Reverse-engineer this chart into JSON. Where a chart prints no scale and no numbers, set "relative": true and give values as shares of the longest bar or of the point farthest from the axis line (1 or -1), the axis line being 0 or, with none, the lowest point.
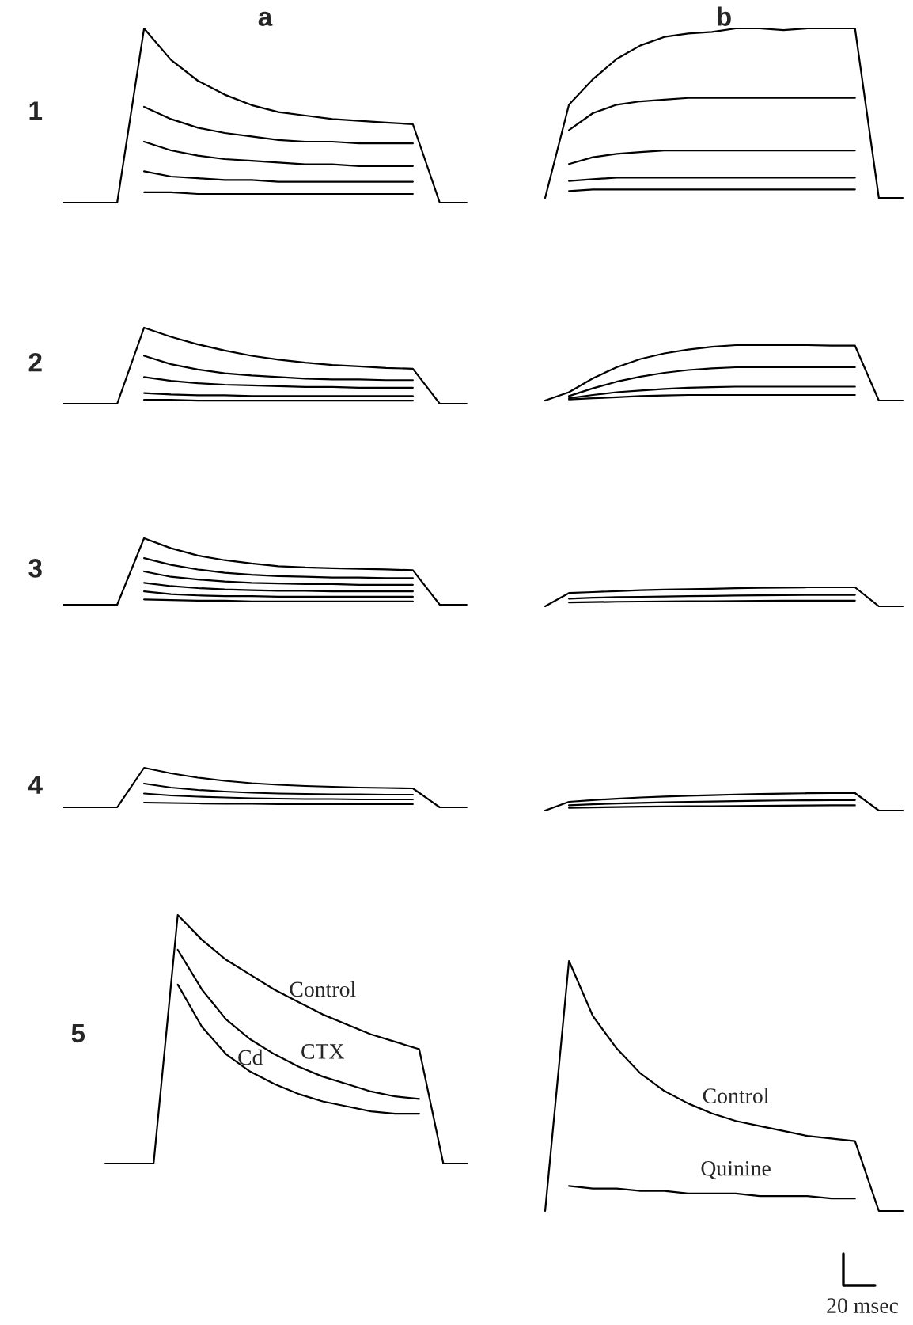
{
  "chart_data": [
    {
      "type": "line",
      "title": "a",
      "ylabel": "1",
      "relative": true,
      "categories": [
        null,
        null,
        null,
        null,
        null,
        null,
        null,
        null,
        null,
        null,
        null,
        null,
        null,
        null,
        null,
        null
      ],
      "series": [
        {
          "color": "#000000",
          "values": [
            0,
            0,
            0,
            1,
            0.82,
            0.7,
            0.62,
            0.56,
            0.52,
            0.5,
            0.48,
            0.47,
            0.46,
            0.45,
            0,
            0
          ]
        },
        {
          "color": "#000000",
          "values": [
            null,
            null,
            null,
            0.55,
            0.48,
            0.43,
            0.4,
            0.38,
            0.36,
            0.35,
            0.35,
            0.34,
            0.34,
            0.34,
            null,
            null
          ]
        },
        {
          "color": "#000000",
          "values": [
            null,
            null,
            null,
            0.35,
            0.3,
            0.27,
            0.25,
            0.24,
            0.23,
            0.22,
            0.22,
            0.21,
            0.21,
            0.21,
            null,
            null
          ]
        },
        {
          "color": "#000000",
          "values": [
            null,
            null,
            null,
            0.18,
            0.15,
            0.14,
            0.13,
            0.13,
            0.12,
            0.12,
            0.12,
            0.12,
            0.12,
            0.12,
            null,
            null
          ]
        },
        {
          "color": "#000000",
          "values": [
            null,
            null,
            null,
            0.06,
            0.06,
            0.05,
            0.05,
            0.05,
            0.05,
            0.05,
            0.05,
            0.05,
            0.05,
            0.05,
            null,
            null
          ]
        }
      ]
    },
    {
      "type": "line",
      "title": "b",
      "relative": true,
      "categories": [
        null,
        null,
        null,
        null,
        null,
        null,
        null,
        null,
        null,
        null,
        null,
        null,
        null,
        null,
        null,
        null
      ],
      "series": [
        {
          "color": "#000000",
          "values": [
            0,
            0.55,
            0.7,
            0.82,
            0.9,
            0.95,
            0.97,
            0.98,
            1,
            1,
            0.99,
            1,
            1,
            1,
            0,
            0
          ]
        },
        {
          "color": "#000000",
          "values": [
            null,
            0.4,
            0.5,
            0.55,
            0.57,
            0.58,
            0.59,
            0.59,
            0.59,
            0.59,
            0.59,
            0.59,
            0.59,
            0.59,
            null,
            null
          ]
        },
        {
          "color": "#000000",
          "values": [
            null,
            0.2,
            0.24,
            0.26,
            0.27,
            0.28,
            0.28,
            0.28,
            0.28,
            0.28,
            0.28,
            0.28,
            0.28,
            0.28,
            null,
            null
          ]
        },
        {
          "color": "#000000",
          "values": [
            null,
            0.1,
            0.11,
            0.12,
            0.12,
            0.12,
            0.12,
            0.12,
            0.12,
            0.12,
            0.12,
            0.12,
            0.12,
            0.12,
            null,
            null
          ]
        },
        {
          "color": "#000000",
          "values": [
            null,
            0.04,
            0.05,
            0.05,
            0.05,
            0.05,
            0.05,
            0.05,
            0.05,
            0.05,
            0.05,
            0.05,
            0.05,
            0.05,
            null,
            null
          ]
        }
      ]
    },
    {
      "type": "line",
      "ylabel": "2",
      "relative": true,
      "categories": [
        null,
        null,
        null,
        null,
        null,
        null,
        null,
        null,
        null,
        null,
        null,
        null,
        null,
        null,
        null,
        null
      ],
      "series": [
        {
          "color": "#000000",
          "values": [
            0,
            0,
            0,
            1,
            0.88,
            0.78,
            0.7,
            0.63,
            0.58,
            0.54,
            0.51,
            0.49,
            0.47,
            0.46,
            0,
            0
          ]
        },
        {
          "color": "#000000",
          "values": [
            null,
            null,
            null,
            0.63,
            0.52,
            0.45,
            0.4,
            0.37,
            0.35,
            0.33,
            0.32,
            0.32,
            0.31,
            0.31,
            null,
            null
          ]
        },
        {
          "color": "#000000",
          "values": [
            null,
            null,
            null,
            0.35,
            0.3,
            0.27,
            0.25,
            0.24,
            0.23,
            0.22,
            0.22,
            0.21,
            0.21,
            0.21,
            null,
            null
          ]
        },
        {
          "color": "#000000",
          "values": [
            null,
            null,
            null,
            0.14,
            0.12,
            0.11,
            0.11,
            0.1,
            0.1,
            0.1,
            0.1,
            0.1,
            0.1,
            0.1,
            null,
            null
          ]
        },
        {
          "color": "#000000",
          "values": [
            null,
            null,
            null,
            0.05,
            0.05,
            0.04,
            0.04,
            0.04,
            0.04,
            0.04,
            0.04,
            0.04,
            0.04,
            0.04,
            null,
            null
          ]
        }
      ]
    },
    {
      "type": "line",
      "relative": true,
      "categories": [
        null,
        null,
        null,
        null,
        null,
        null,
        null,
        null,
        null,
        null,
        null,
        null,
        null,
        null,
        null,
        null
      ],
      "series": [
        {
          "color": "#000000",
          "values": [
            0,
            0.15,
            0.4,
            0.6,
            0.75,
            0.85,
            0.92,
            0.97,
            1,
            1,
            1,
            1,
            0.99,
            0.99,
            0,
            0
          ]
        },
        {
          "color": "#000000",
          "values": [
            null,
            0.08,
            0.22,
            0.34,
            0.43,
            0.5,
            0.55,
            0.58,
            0.6,
            0.6,
            0.6,
            0.6,
            0.6,
            0.6,
            null,
            null
          ]
        },
        {
          "color": "#000000",
          "values": [
            null,
            0.04,
            0.1,
            0.15,
            0.18,
            0.21,
            0.23,
            0.24,
            0.25,
            0.25,
            0.25,
            0.25,
            0.25,
            0.25,
            null,
            null
          ]
        },
        {
          "color": "#000000",
          "values": [
            null,
            0.02,
            0.04,
            0.06,
            0.08,
            0.09,
            0.1,
            0.1,
            0.1,
            0.1,
            0.1,
            0.1,
            0.1,
            0.1,
            null,
            null
          ]
        }
      ]
    },
    {
      "type": "line",
      "ylabel": "3",
      "relative": true,
      "categories": [
        null,
        null,
        null,
        null,
        null,
        null,
        null,
        null,
        null,
        null,
        null,
        null,
        null,
        null,
        null,
        null
      ],
      "series": [
        {
          "color": "#000000",
          "values": [
            0,
            0,
            0,
            1,
            0.85,
            0.74,
            0.67,
            0.62,
            0.58,
            0.56,
            0.55,
            0.54,
            0.53,
            0.52,
            0,
            0
          ]
        },
        {
          "color": "#000000",
          "values": [
            null,
            null,
            null,
            0.7,
            0.6,
            0.53,
            0.48,
            0.45,
            0.43,
            0.42,
            0.41,
            0.41,
            0.4,
            0.4,
            null,
            null
          ]
        },
        {
          "color": "#000000",
          "values": [
            null,
            null,
            null,
            0.5,
            0.42,
            0.38,
            0.35,
            0.33,
            0.32,
            0.31,
            0.31,
            0.3,
            0.3,
            0.3,
            null,
            null
          ]
        },
        {
          "color": "#000000",
          "values": [
            null,
            null,
            null,
            0.33,
            0.28,
            0.25,
            0.23,
            0.22,
            0.21,
            0.21,
            0.2,
            0.2,
            0.2,
            0.2,
            null,
            null
          ]
        },
        {
          "color": "#000000",
          "values": [
            null,
            null,
            null,
            0.2,
            0.16,
            0.14,
            0.13,
            0.13,
            0.12,
            0.12,
            0.12,
            0.12,
            0.12,
            0.12,
            null,
            null
          ]
        },
        {
          "color": "#000000",
          "values": [
            null,
            null,
            null,
            0.08,
            0.07,
            0.06,
            0.06,
            0.05,
            0.05,
            0.05,
            0.05,
            0.05,
            0.05,
            0.05,
            null,
            null
          ]
        }
      ]
    },
    {
      "type": "line",
      "relative": true,
      "categories": [
        null,
        null,
        null,
        null,
        null,
        null,
        null,
        null,
        null,
        null,
        null,
        null,
        null,
        null,
        null,
        null
      ],
      "series": [
        {
          "color": "#000000",
          "values": [
            0,
            0.7,
            0.75,
            0.8,
            0.85,
            0.88,
            0.9,
            0.92,
            0.95,
            0.97,
            0.98,
            1,
            1,
            1,
            0,
            0
          ]
        },
        {
          "color": "#000000",
          "values": [
            null,
            0.4,
            0.45,
            0.48,
            0.5,
            0.52,
            0.54,
            0.55,
            0.57,
            0.58,
            0.59,
            0.6,
            0.6,
            0.6,
            null,
            null
          ]
        },
        {
          "color": "#000000",
          "values": [
            null,
            0.2,
            0.22,
            0.24,
            0.25,
            0.26,
            0.27,
            0.27,
            0.28,
            0.29,
            0.3,
            0.3,
            0.3,
            0.3,
            null,
            null
          ]
        }
      ]
    },
    {
      "type": "line",
      "ylabel": "4",
      "relative": true,
      "categories": [
        null,
        null,
        null,
        null,
        null,
        null,
        null,
        null,
        null,
        null,
        null,
        null,
        null,
        null,
        null,
        null
      ],
      "series": [
        {
          "color": "#000000",
          "values": [
            0,
            0,
            0,
            1,
            0.86,
            0.75,
            0.67,
            0.61,
            0.57,
            0.54,
            0.52,
            0.5,
            0.49,
            0.48,
            0,
            0
          ]
        },
        {
          "color": "#000000",
          "values": [
            null,
            null,
            null,
            0.6,
            0.5,
            0.44,
            0.4,
            0.37,
            0.35,
            0.34,
            0.33,
            0.33,
            0.32,
            0.32,
            null,
            null
          ]
        },
        {
          "color": "#000000",
          "values": [
            null,
            null,
            null,
            0.35,
            0.3,
            0.27,
            0.25,
            0.23,
            0.22,
            0.21,
            0.21,
            0.2,
            0.2,
            0.2,
            null,
            null
          ]
        },
        {
          "color": "#000000",
          "values": [
            null,
            null,
            null,
            0.12,
            0.11,
            0.1,
            0.09,
            0.09,
            0.08,
            0.08,
            0.08,
            0.08,
            0.08,
            0.08,
            null,
            null
          ]
        }
      ]
    },
    {
      "type": "line",
      "relative": true,
      "categories": [
        null,
        null,
        null,
        null,
        null,
        null,
        null,
        null,
        null,
        null,
        null,
        null,
        null,
        null,
        null,
        null
      ],
      "series": [
        {
          "color": "#000000",
          "values": [
            0,
            0.5,
            0.6,
            0.68,
            0.75,
            0.8,
            0.85,
            0.88,
            0.92,
            0.95,
            0.97,
            0.99,
            1,
            1,
            0,
            0
          ]
        },
        {
          "color": "#000000",
          "values": [
            null,
            0.3,
            0.36,
            0.4,
            0.44,
            0.47,
            0.5,
            0.52,
            0.54,
            0.56,
            0.58,
            0.59,
            0.6,
            0.6,
            null,
            null
          ]
        },
        {
          "color": "#000000",
          "values": [
            null,
            0.15,
            0.18,
            0.2,
            0.22,
            0.23,
            0.24,
            0.25,
            0.26,
            0.27,
            0.28,
            0.29,
            0.3,
            0.3,
            null,
            null
          ]
        }
      ]
    },
    {
      "type": "line",
      "ylabel": "5",
      "relative": true,
      "categories": [
        null,
        null,
        null,
        null,
        null,
        null,
        null,
        null,
        null,
        null,
        null,
        null,
        null,
        null,
        null,
        null
      ],
      "series": [
        {
          "name": "Control",
          "color": "#000000",
          "values": [
            0,
            0,
            0,
            1,
            0.9,
            0.82,
            0.76,
            0.7,
            0.65,
            0.6,
            0.56,
            0.52,
            0.49,
            0.46,
            0,
            0
          ]
        },
        {
          "name": "CTX",
          "color": "#000000",
          "values": [
            null,
            null,
            null,
            0.86,
            0.7,
            0.58,
            0.5,
            0.44,
            0.39,
            0.35,
            0.32,
            0.29,
            0.27,
            0.26,
            null,
            null
          ]
        },
        {
          "name": "Cd",
          "color": "#000000",
          "values": [
            null,
            null,
            null,
            0.72,
            0.55,
            0.44,
            0.37,
            0.32,
            0.28,
            0.25,
            0.23,
            0.21,
            0.2,
            0.2,
            null,
            null
          ]
        }
      ]
    },
    {
      "type": "line",
      "relative": true,
      "annotations": [
        "20 msec"
      ],
      "categories": [
        null,
        null,
        null,
        null,
        null,
        null,
        null,
        null,
        null,
        null,
        null,
        null,
        null,
        null,
        null,
        null
      ],
      "series": [
        {
          "name": "Control",
          "color": "#000000",
          "values": [
            0,
            1,
            0.78,
            0.65,
            0.55,
            0.48,
            0.43,
            0.39,
            0.36,
            0.34,
            0.32,
            0.3,
            0.29,
            0.28,
            0,
            0
          ]
        },
        {
          "name": "Quinine",
          "color": "#000000",
          "values": [
            null,
            0.1,
            0.09,
            0.09,
            0.08,
            0.08,
            0.07,
            0.07,
            0.07,
            0.06,
            0.06,
            0.06,
            0.05,
            0.05,
            null,
            null
          ]
        }
      ]
    }
  ]
}
